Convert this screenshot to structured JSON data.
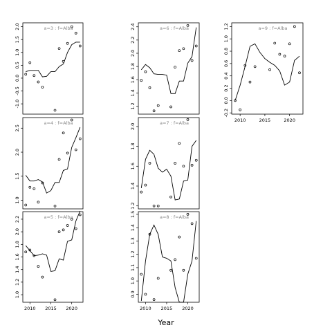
{
  "figure": {
    "xlabel": "Year"
  },
  "chart_data": [
    {
      "type": "line",
      "title": "a=3 : f=Alba",
      "x": [
        2009,
        2010,
        2011,
        2012,
        2013,
        2014,
        2015,
        2016,
        2017,
        2018,
        2019,
        2020,
        2021,
        2022
      ],
      "fitted": [
        0.25,
        0.3,
        0.3,
        0.3,
        0.05,
        0.07,
        0.25,
        0.25,
        0.45,
        0.55,
        1.0,
        1.3,
        1.4,
        1.4
      ],
      "observed_x": [
        2009,
        2010,
        2011,
        2012,
        2013,
        2016,
        2017,
        2018,
        2019,
        2020,
        2021,
        2022
      ],
      "observed_y": [
        0.15,
        0.6,
        0.1,
        -0.15,
        -0.35,
        -1.25,
        1.15,
        0.65,
        1.35,
        2.0,
        1.75,
        1.25
      ],
      "ylim": [
        -1.4,
        2.15
      ],
      "yticks": [
        "-1.0",
        "-0.5",
        "0.0",
        "0.5",
        "1.0",
        "1.5",
        "2.0"
      ],
      "ytick_values": [
        -1.0,
        -0.5,
        0.0,
        0.5,
        1.0,
        1.5,
        2.0
      ],
      "xticks": [],
      "xtick_values": []
    },
    {
      "type": "line",
      "title": "a=6 : f=Alba",
      "x": [
        2009,
        2010,
        2011,
        2012,
        2013,
        2014,
        2015,
        2016,
        2017,
        2018,
        2019,
        2020,
        2021,
        2022
      ],
      "fitted": [
        1.75,
        1.83,
        1.78,
        1.69,
        1.68,
        1.68,
        1.67,
        1.39,
        1.39,
        1.58,
        1.58,
        1.85,
        1.95,
        2.39
      ],
      "observed_x": [
        2009,
        2010,
        2011,
        2012,
        2013,
        2016,
        2017,
        2018,
        2019,
        2020,
        2021,
        2022
      ],
      "observed_y": [
        1.59,
        1.72,
        1.48,
        1.13,
        1.21,
        1.19,
        1.79,
        2.04,
        2.07,
        2.42,
        1.89,
        2.11
      ],
      "ylim": [
        1.08,
        2.46
      ],
      "yticks": [
        "1.2",
        "1.4",
        "1.6",
        "1.8",
        "2.0",
        "2.2",
        "2.4"
      ],
      "ytick_values": [
        1.2,
        1.4,
        1.6,
        1.8,
        2.0,
        2.2,
        2.4
      ],
      "xticks": [],
      "xtick_values": []
    },
    {
      "type": "line",
      "title": "a=9 : f=Alba",
      "x": [
        2009,
        2010,
        2011,
        2012,
        2013,
        2014,
        2015,
        2016,
        2017,
        2018,
        2019,
        2020,
        2021,
        2022
      ],
      "fitted": [
        0.0,
        0.25,
        0.55,
        0.88,
        0.92,
        0.78,
        0.68,
        0.62,
        0.57,
        0.48,
        0.25,
        0.3,
        0.65,
        0.72
      ],
      "observed_x": [
        2009,
        2010,
        2011,
        2012,
        2013,
        2016,
        2017,
        2018,
        2019,
        2020,
        2021,
        2022
      ],
      "observed_y": [
        0.0,
        -0.15,
        0.57,
        0.3,
        0.55,
        0.5,
        0.93,
        0.75,
        0.72,
        0.92,
        1.2,
        0.45
      ],
      "ylim": [
        -0.22,
        1.26
      ],
      "yticks": [
        "-0.2",
        "0.0",
        "0.2",
        "0.4",
        "0.6",
        "0.8",
        "1.0",
        "1.2"
      ],
      "ytick_values": [
        -0.2,
        0.0,
        0.2,
        0.4,
        0.6,
        0.8,
        1.0,
        1.2
      ],
      "xticks": [
        "2010",
        "2015",
        "2020"
      ],
      "xtick_values": [
        2010,
        2015,
        2020
      ]
    },
    {
      "type": "line",
      "title": "a=4 : f=Alba",
      "x": [
        2009,
        2010,
        2011,
        2012,
        2013,
        2014,
        2015,
        2016,
        2017,
        2018,
        2019,
        2020,
        2021,
        2022
      ],
      "fitted": [
        1.52,
        1.4,
        1.4,
        1.43,
        1.38,
        1.15,
        1.2,
        1.37,
        1.37,
        1.62,
        1.65,
        2.1,
        2.3,
        2.52
      ],
      "observed_x": [
        2009,
        2010,
        2011,
        2012,
        2013,
        2016,
        2017,
        2018,
        2019,
        2020,
        2021,
        2022
      ],
      "observed_y": [
        0.9,
        1.27,
        1.24,
        0.96,
        1.36,
        0.88,
        1.85,
        2.4,
        1.98,
        2.67,
        2.05,
        2.28
      ],
      "ylim": [
        0.82,
        2.72
      ],
      "yticks": [
        "1.0",
        "1.5",
        "2.0",
        "2.5"
      ],
      "ytick_values": [
        1.0,
        1.5,
        2.0,
        2.5
      ],
      "xticks": [],
      "xtick_values": []
    },
    {
      "type": "line",
      "title": "a=7 : f=Alba",
      "x": [
        2009,
        2010,
        2011,
        2012,
        2013,
        2014,
        2015,
        2016,
        2017,
        2018,
        2019,
        2020,
        2021,
        2022
      ],
      "fitted": [
        1.38,
        1.67,
        1.76,
        1.72,
        1.58,
        1.54,
        1.57,
        1.5,
        1.26,
        1.27,
        1.45,
        1.46,
        1.8,
        1.86
      ],
      "observed_x": [
        2009,
        2010,
        2011,
        2012,
        2013,
        2016,
        2017,
        2018,
        2019,
        2020,
        2021,
        2022
      ],
      "observed_y": [
        1.34,
        1.41,
        1.63,
        1.2,
        1.2,
        1.29,
        1.63,
        1.83,
        1.6,
        2.07,
        1.61,
        1.66
      ],
      "ylim": [
        1.17,
        2.09
      ],
      "yticks": [
        "1.2",
        "1.4",
        "1.6",
        "1.8",
        "2.0"
      ],
      "ytick_values": [
        1.2,
        1.4,
        1.6,
        1.8,
        2.0
      ],
      "xticks": [],
      "xtick_values": []
    },
    {
      "type": "line",
      "title": "a=5 : f=Alba",
      "x": [
        2009,
        2010,
        2011,
        2012,
        2013,
        2014,
        2015,
        2016,
        2017,
        2018,
        2019,
        2020,
        2021,
        2022
      ],
      "fitted": [
        1.78,
        1.7,
        1.62,
        1.63,
        1.65,
        1.63,
        1.37,
        1.38,
        1.57,
        1.55,
        1.85,
        1.87,
        2.17,
        2.33
      ],
      "observed_x": [
        2009,
        2010,
        2011,
        2012,
        2013,
        2016,
        2017,
        2018,
        2019,
        2020,
        2021,
        2022
      ],
      "observed_y": [
        1.68,
        1.71,
        1.62,
        1.45,
        1.28,
        0.92,
        2.0,
        2.03,
        2.1,
        2.2,
        2.05,
        2.27
      ],
      "ylim": [
        0.88,
        2.32
      ],
      "yticks": [
        "1.0",
        "1.2",
        "1.4",
        "1.6",
        "1.8",
        "2.0",
        "2.2"
      ],
      "ytick_values": [
        1.0,
        1.2,
        1.4,
        1.6,
        1.8,
        2.0,
        2.2
      ],
      "xticks": [
        "2010",
        "2015",
        "2020"
      ],
      "xtick_values": [
        2010,
        2015,
        2020
      ]
    },
    {
      "type": "line",
      "title": "a=8 : f=Alba",
      "x": [
        2009,
        2010,
        2011,
        2012,
        2013,
        2014,
        2015,
        2016,
        2017,
        2018,
        2019,
        2020,
        2021,
        2022
      ],
      "fitted": [
        0.85,
        1.15,
        1.35,
        1.42,
        1.35,
        1.18,
        1.17,
        1.15,
        0.95,
        0.84,
        0.84,
        1.05,
        1.15,
        1.45
      ],
      "observed_x": [
        2009,
        2010,
        2011,
        2012,
        2013,
        2016,
        2017,
        2018,
        2019,
        2020,
        2021,
        2022
      ],
      "observed_y": [
        1.05,
        0.9,
        1.35,
        0.86,
        1.02,
        1.08,
        1.16,
        1.33,
        1.08,
        1.5,
        1.43,
        1.17
      ],
      "ylim": [
        0.84,
        1.52
      ],
      "yticks": [
        "0.9",
        "1.0",
        "1.1",
        "1.2",
        "1.3",
        "1.4",
        "1.5"
      ],
      "ytick_values": [
        0.9,
        1.0,
        1.1,
        1.2,
        1.3,
        1.4,
        1.5
      ],
      "xticks": [
        "2010",
        "2015",
        "2020"
      ],
      "xtick_values": [
        2010,
        2015,
        2020
      ]
    }
  ]
}
